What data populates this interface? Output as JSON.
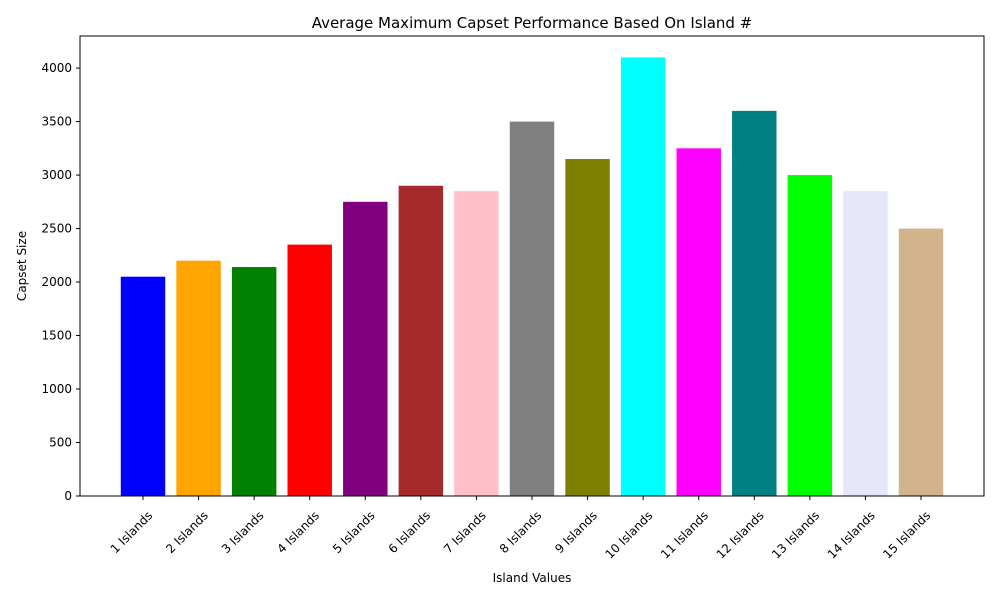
{
  "chart_data": {
    "type": "bar",
    "title": "Average Maximum Capset Performance Based On Island #",
    "xlabel": "Island Values",
    "ylabel": "Capset Size",
    "ylim": [
      0,
      4300
    ],
    "yticks": [
      0,
      500,
      1000,
      1500,
      2000,
      2500,
      3000,
      3500,
      4000
    ],
    "grid": false,
    "categories": [
      "1 Islands",
      "2 Islands",
      "3 Islands",
      "4 Islands",
      "5 Islands",
      "6 Islands",
      "7 Islands",
      "8 Islands",
      "9 Islands",
      "10 Islands",
      "11 Islands",
      "12 Islands",
      "13 Islands",
      "14 Islands",
      "15 Islands"
    ],
    "values": [
      2050,
      2200,
      2140,
      2350,
      2750,
      2900,
      2850,
      3500,
      3150,
      4100,
      3250,
      3600,
      3000,
      2850,
      2500
    ],
    "colors": [
      "#0000ff",
      "#ffa500",
      "#008000",
      "#ff0000",
      "#800080",
      "#a52a2a",
      "#ffc0cb",
      "#808080",
      "#808000",
      "#00ffff",
      "#ff00ff",
      "#008080",
      "#00ff00",
      "#e6e6fa",
      "#d2b48c"
    ]
  }
}
